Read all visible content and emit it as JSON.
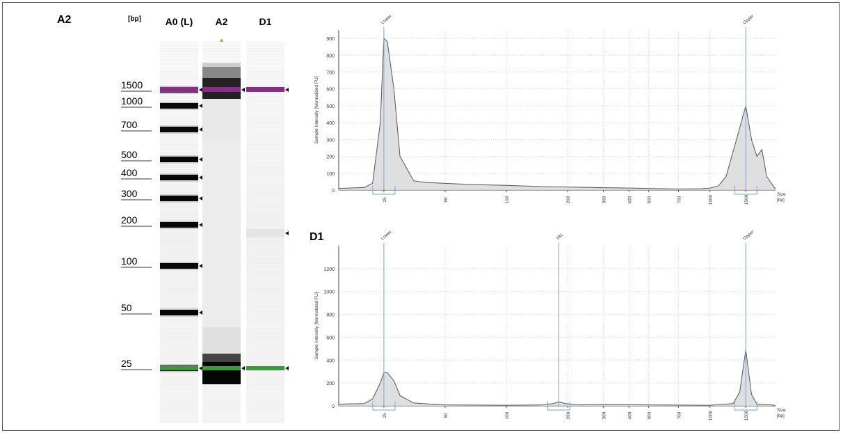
{
  "figure": {
    "panel_label": "A2",
    "bp_unit": "[bp]"
  },
  "gel": {
    "lanes": [
      {
        "id": "ladder",
        "label": "A0 (L)"
      },
      {
        "id": "A2",
        "label": "A2",
        "warning": true
      },
      {
        "id": "D1",
        "label": "D1"
      }
    ],
    "ladder_sizes": [
      "1500",
      "1000",
      "700",
      "500",
      "400",
      "300",
      "200",
      "100",
      "50",
      "25"
    ],
    "marker_colors": {
      "upper": "#8e2a8c",
      "lower": "#3a9a3a"
    },
    "lane_bands": {
      "ladder": [
        1500,
        1000,
        700,
        500,
        400,
        300,
        200,
        100,
        50,
        25
      ],
      "A2": [
        1500,
        25
      ],
      "D1": [
        1500,
        181,
        25
      ]
    }
  },
  "chart_data": [
    {
      "type": "area",
      "panel": "A2",
      "title": "",
      "xlabel": "Size [bp]",
      "ylabel": "Sample Intensity [Normalized FU]",
      "ylim": [
        0,
        950
      ],
      "yticks": [
        0,
        100,
        200,
        300,
        400,
        500,
        600,
        700,
        800,
        900
      ],
      "x_tick_labels": [
        "25",
        "50",
        "100",
        "200",
        "300",
        "400",
        "500",
        "700",
        "1000",
        "1500"
      ],
      "peak_labels": [
        "Lower",
        "Upper"
      ],
      "x_bp": [
        15,
        20,
        22,
        24,
        25,
        26,
        28,
        30,
        35,
        40,
        50,
        70,
        100,
        150,
        200,
        300,
        400,
        500,
        700,
        900,
        1000,
        1100,
        1200,
        1350,
        1500,
        1600,
        1700,
        1800,
        1900,
        2100
      ],
      "y": [
        10,
        15,
        40,
        400,
        900,
        880,
        600,
        200,
        55,
        45,
        40,
        32,
        28,
        20,
        18,
        14,
        12,
        10,
        6,
        8,
        12,
        25,
        80,
        300,
        500,
        300,
        200,
        240,
        80,
        5
      ],
      "line_color": "#555555",
      "fill_color": "#d9d9d9",
      "marker_line_color": "#6fa8dc"
    },
    {
      "type": "area",
      "panel": "D1",
      "title": "D1",
      "xlabel": "Size [bp]",
      "ylabel": "Sample Intensity [Normalized FU]",
      "ylim": [
        0,
        1400
      ],
      "yticks": [
        0,
        200,
        400,
        600,
        800,
        1000,
        1200
      ],
      "x_tick_labels": [
        "25",
        "50",
        "100",
        "200",
        "300",
        "400",
        "500",
        "700",
        "1000",
        "1500"
      ],
      "peak_labels": [
        "Lower",
        "181",
        "Upper"
      ],
      "x_bp": [
        15,
        20,
        22,
        24,
        25,
        26,
        28,
        30,
        35,
        50,
        100,
        150,
        170,
        181,
        195,
        230,
        300,
        500,
        1000,
        1300,
        1400,
        1500,
        1600,
        1700,
        2100
      ],
      "y": [
        15,
        20,
        60,
        200,
        290,
        290,
        220,
        90,
        25,
        8,
        5,
        8,
        20,
        35,
        20,
        8,
        12,
        8,
        5,
        20,
        120,
        490,
        100,
        15,
        5
      ],
      "line_color": "#555555",
      "fill_color": "#d9d9d9",
      "marker_line_color": "#6fa8dc"
    }
  ]
}
